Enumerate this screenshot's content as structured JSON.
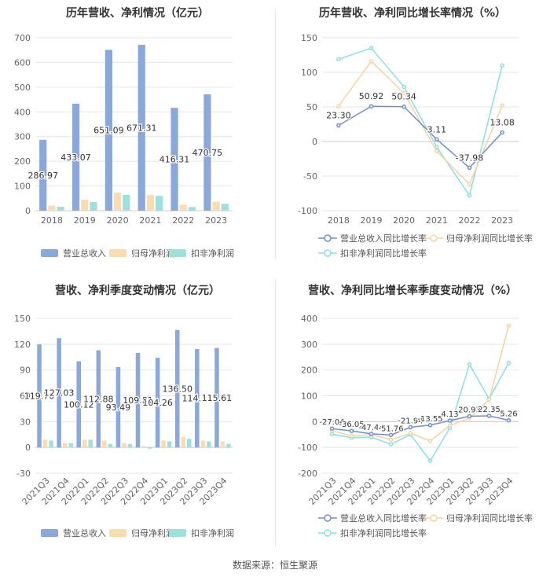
{
  "source_text": "数据来源：恒生聚源",
  "chart_data": [
    {
      "id": "annual_amount",
      "type": "bar",
      "title": "历年营收、净利情况（亿元）",
      "categories": [
        "2018",
        "2019",
        "2020",
        "2021",
        "2022",
        "2023"
      ],
      "ylim": [
        0,
        700
      ],
      "yticks": [
        0,
        100,
        200,
        300,
        400,
        500,
        600,
        700
      ],
      "series": [
        {
          "name": "营业总收入",
          "color": "#8aa8db",
          "values": [
            286.97,
            433.07,
            651.09,
            671.31,
            416.31,
            470.75
          ],
          "labels": [
            "286.97",
            "433.07",
            "651.09",
            "671.31",
            "416.31",
            "470.75"
          ]
        },
        {
          "name": "归母净利润",
          "color": "#fbdcae",
          "values": [
            20,
            44,
            73,
            63,
            24,
            36
          ]
        },
        {
          "name": "扣非净利润",
          "color": "#9ee0dc",
          "values": [
            16,
            35,
            64,
            60,
            15,
            28
          ]
        }
      ]
    },
    {
      "id": "annual_growth",
      "type": "line",
      "title": "历年营收、净利同比增长率情况（%）",
      "categories": [
        "2018",
        "2019",
        "2020",
        "2021",
        "2022",
        "2023"
      ],
      "ylim": [
        -100,
        150
      ],
      "yticks": [
        -100,
        -50,
        0,
        50,
        100,
        150
      ],
      "series": [
        {
          "name": "营业总收入同比增长率",
          "color": "#6f8fce",
          "values": [
            23.3,
            50.92,
            50.34,
            3.11,
            -37.98,
            13.08
          ],
          "labels": [
            "23.30",
            "50.92",
            "50.34",
            "3.11",
            "-37.98",
            "13.08"
          ]
        },
        {
          "name": "归母净利润同比增长率",
          "color": "#fbd39a",
          "values": [
            51,
            116,
            70,
            -14,
            -62,
            52
          ]
        },
        {
          "name": "扣非净利润同比增长率",
          "color": "#86e0eb",
          "values": [
            119,
            135,
            79,
            -8,
            -78,
            110
          ]
        }
      ]
    },
    {
      "id": "quarter_amount",
      "type": "bar",
      "title": "营收、净利季度变动情况（亿元）",
      "categories": [
        "2021Q3",
        "2021Q4",
        "2022Q1",
        "2022Q2",
        "2022Q3",
        "2022Q4",
        "2023Q1",
        "2023Q2",
        "2023Q3",
        "2023Q4"
      ],
      "ylim": [
        -30,
        150
      ],
      "yticks": [
        -30,
        0,
        30,
        60,
        90,
        120,
        150
      ],
      "series": [
        {
          "name": "营业总收入",
          "color": "#8aa8db",
          "values": [
            119.7,
            127.03,
            100.12,
            112.88,
            93.49,
            109.81,
            104.26,
            136.5,
            114.31,
            115.61
          ],
          "labels": [
            "119.70",
            "127.03",
            "100.12",
            "112.88",
            "93.49",
            "109.81",
            "104.26",
            "136.50",
            "114.31",
            "115.61"
          ]
        },
        {
          "name": "归母净利润",
          "color": "#fbdcae",
          "values": [
            9,
            5,
            9,
            8,
            5,
            1.5,
            8,
            12,
            8,
            7
          ]
        },
        {
          "name": "扣非净利润",
          "color": "#9ee0dc",
          "values": [
            8,
            5,
            9,
            4,
            4,
            -1.5,
            7,
            10,
            7,
            4
          ]
        }
      ]
    },
    {
      "id": "quarter_growth",
      "type": "line",
      "title": "营收、净利同比增长率季度变动情况（%）",
      "categories": [
        "2021Q3",
        "2021Q4",
        "2022Q1",
        "2022Q2",
        "2022Q3",
        "2022Q4",
        "2023Q1",
        "2023Q2",
        "2023Q3",
        "2023Q4"
      ],
      "ylim": [
        -200,
        400
      ],
      "yticks": [
        -200,
        -100,
        0,
        100,
        200,
        300,
        400
      ],
      "series": [
        {
          "name": "营业总收入同比增长率",
          "color": "#6f8fce",
          "values": [
            -27.04,
            -36.05,
            -47.44,
            -51.76,
            -21.94,
            -13.55,
            4.13,
            20.93,
            22.35,
            5.26
          ],
          "labels": [
            "-27.04",
            "-36.05",
            "-47.44",
            "-51.76",
            "-21.94",
            "-13.55",
            "4.13",
            "20.93",
            "22.35",
            "5.26"
          ]
        },
        {
          "name": "归母净利润同比增长率",
          "color": "#fbd39a",
          "values": [
            -35,
            -55,
            -50,
            -70,
            -45,
            -75,
            -15,
            13,
            85,
            372
          ]
        },
        {
          "name": "扣非净利润同比增长率",
          "color": "#86e0eb",
          "values": [
            -48,
            -62,
            -60,
            -88,
            -50,
            -152,
            -25,
            222,
            88,
            228
          ]
        }
      ]
    }
  ]
}
